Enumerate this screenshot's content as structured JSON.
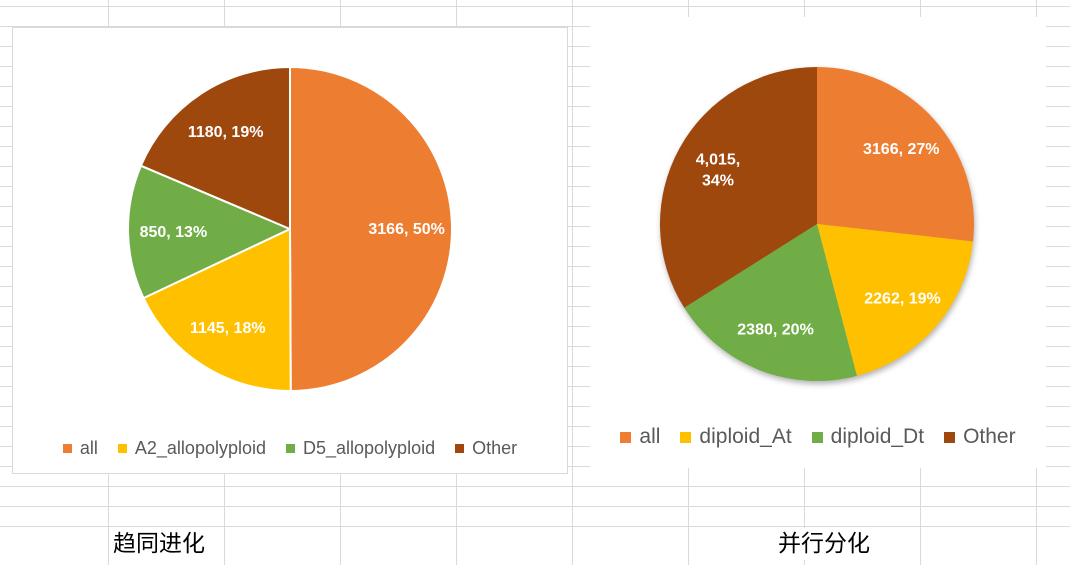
{
  "sheet": {
    "cells": {
      "caption_left": "趋同进化",
      "caption_right": "并行分化"
    }
  },
  "chart_data": [
    {
      "type": "pie",
      "categories": [
        "all",
        "A2_allopolyploid",
        "D5_allopolyploid",
        "Other"
      ],
      "values": [
        3166,
        1145,
        850,
        1180
      ],
      "data_labels": [
        [
          "3166, 50%"
        ],
        [
          "1145, 18%"
        ],
        [
          "850, 13%"
        ],
        [
          "1180, 19%"
        ]
      ],
      "colors": [
        "#ED7D31",
        "#FFC000",
        "#70AD47",
        "#9E480E"
      ],
      "legend": "bottom"
    },
    {
      "type": "pie",
      "categories": [
        "all",
        "diploid_At",
        "diploid_Dt",
        "Other"
      ],
      "values": [
        3166,
        2262,
        2380,
        4015
      ],
      "data_labels": [
        [
          "3166, 27%"
        ],
        [
          "2262, 19%"
        ],
        [
          "2380, 20%"
        ],
        [
          "4,015,",
          "34%"
        ]
      ],
      "colors": [
        "#ED7D31",
        "#FFC000",
        "#70AD47",
        "#9E480E"
      ],
      "legend": "bottom"
    }
  ]
}
